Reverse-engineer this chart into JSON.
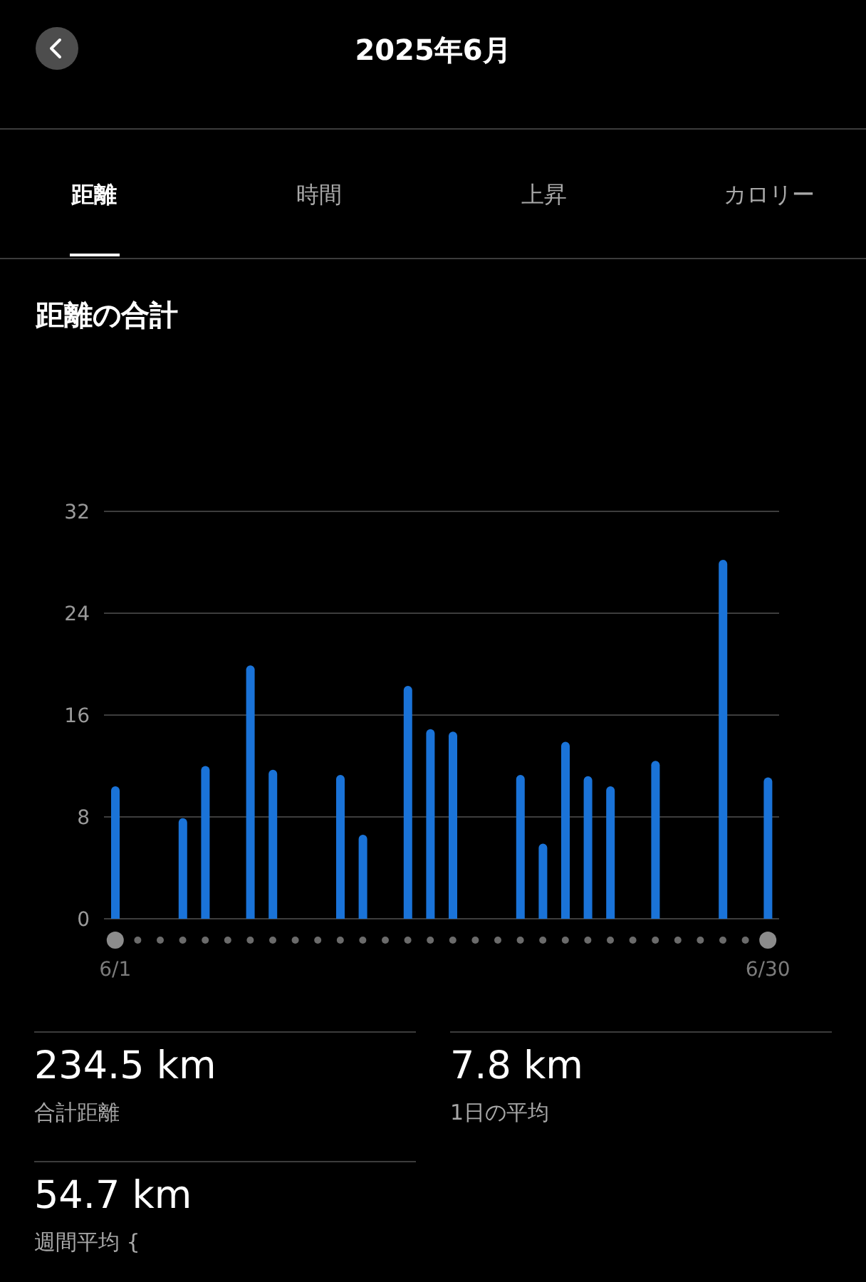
{
  "chart_data": {
    "type": "bar",
    "title": "2025年6月",
    "subtitle": "距離の合計",
    "categories": [
      "6/1",
      null,
      null,
      null,
      null,
      null,
      null,
      null,
      null,
      null,
      null,
      null,
      null,
      null,
      null,
      null,
      null,
      null,
      null,
      null,
      null,
      null,
      null,
      null,
      null,
      null,
      null,
      null,
      null,
      "6/30"
    ],
    "values": [
      10.4,
      0,
      0,
      7.9,
      12.0,
      0,
      19.9,
      11.7,
      0,
      0,
      11.3,
      6.6,
      0,
      18.3,
      14.9,
      14.7,
      0,
      0,
      11.3,
      5.9,
      13.9,
      11.2,
      10.4,
      0,
      12.4,
      0,
      0,
      28.2,
      0,
      11.1
    ],
    "color": "#1a73d8",
    "ylim": [
      0,
      32
    ],
    "yticks": [
      0,
      8,
      16,
      24,
      32
    ],
    "grid": "y",
    "annotations": [
      "距離",
      "時間",
      "上昇",
      "カロリー",
      "234.5 km",
      "合計距離",
      "7.8 km",
      "1日の平均",
      "54.7 km",
      "週間平均 {"
    ]
  }
}
